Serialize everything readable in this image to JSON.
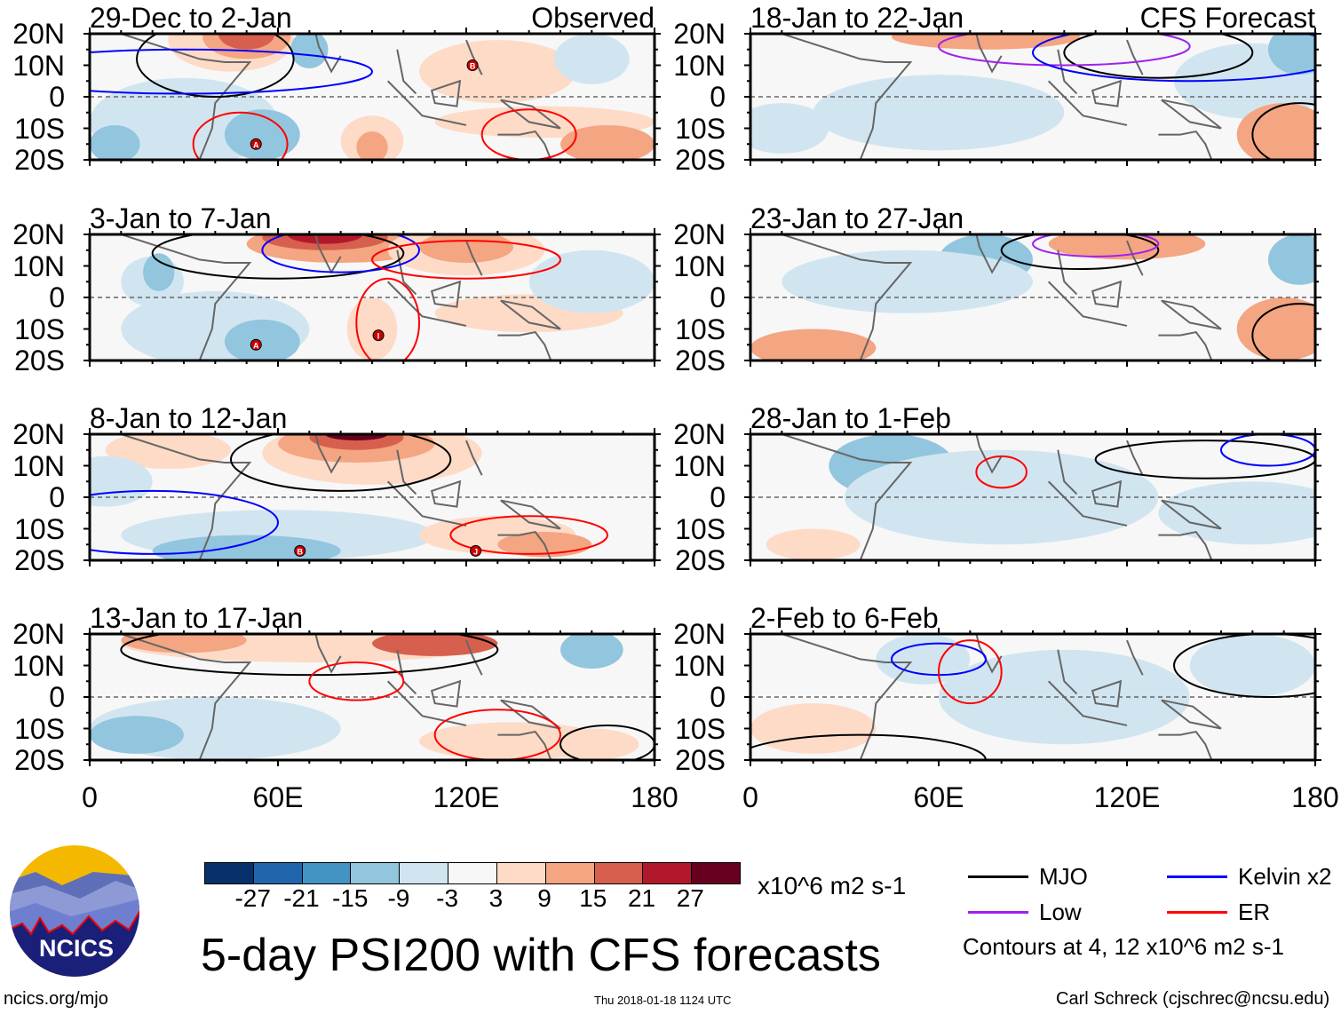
{
  "figure": {
    "title": "5-day PSI200 with CFS forecasts",
    "left_header_right": "Observed",
    "right_header_right": "CFS Forecast",
    "units": "x10^6 m2 s-1",
    "contour_note": "Contours at 4, 12 x10^6 m2 s-1",
    "url": "ncics.org/mjo",
    "timestamp": "Thu 2018-01-18 1124 UTC",
    "author": "Carl Schreck (cjschrec@ncsu.edu)",
    "logo_text": "NCICS"
  },
  "axes": {
    "lat_labels": [
      "20N",
      "10N",
      "0",
      "10S",
      "20S"
    ],
    "lon_labels": [
      "0",
      "60E",
      "120E",
      "180"
    ],
    "lon_range": [
      0,
      180
    ],
    "lat_range": [
      -20,
      20
    ]
  },
  "panels": [
    {
      "title": "29-Dec to 2-Jan",
      "type": "observed",
      "storms": [
        {
          "label": "A",
          "lon": 53,
          "lat": -15
        },
        {
          "label": "B",
          "lon": 122,
          "lat": 10
        }
      ]
    },
    {
      "title": "3-Jan to 7-Jan",
      "type": "observed",
      "storms": [
        {
          "label": "A",
          "lon": 53,
          "lat": -15
        },
        {
          "label": "I",
          "lon": 92,
          "lat": -12
        }
      ]
    },
    {
      "title": "8-Jan to 12-Jan",
      "type": "observed",
      "storms": [
        {
          "label": "B",
          "lon": 67,
          "lat": -17
        },
        {
          "label": "J",
          "lon": 123,
          "lat": -17
        }
      ]
    },
    {
      "title": "13-Jan to 17-Jan",
      "type": "observed",
      "storms": []
    },
    {
      "title": "18-Jan to 22-Jan",
      "type": "forecast",
      "storms": []
    },
    {
      "title": "23-Jan to 27-Jan",
      "type": "forecast",
      "storms": []
    },
    {
      "title": "28-Jan to 1-Feb",
      "type": "forecast",
      "storms": []
    },
    {
      "title": "2-Feb to 6-Feb",
      "type": "forecast",
      "storms": []
    }
  ],
  "colorbar": {
    "labels": [
      "-27",
      "-21",
      "-15",
      "-9",
      "-3",
      "3",
      "9",
      "15",
      "21",
      "27"
    ],
    "colors": [
      "#08306b",
      "#2166ac",
      "#4393c3",
      "#92c5de",
      "#d1e5f0",
      "#f7f7f7",
      "#fddbc7",
      "#f4a582",
      "#d6604d",
      "#b2182b",
      "#67001f"
    ]
  },
  "legend": [
    {
      "label": "MJO",
      "color": "#000000"
    },
    {
      "label": "Kelvin x2",
      "color": "#0000ff"
    },
    {
      "label": "Low",
      "color": "#a020f0"
    },
    {
      "label": "ER",
      "color": "#ff0000"
    }
  ]
}
